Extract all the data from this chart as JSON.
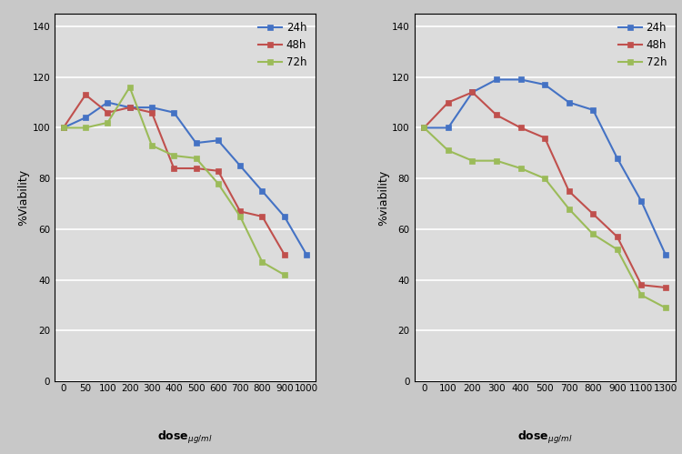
{
  "left": {
    "doses": [
      0,
      50,
      100,
      200,
      300,
      400,
      500,
      600,
      700,
      800,
      900,
      1000
    ],
    "24h": [
      100,
      104,
      110,
      108,
      108,
      106,
      94,
      95,
      85,
      75,
      65,
      50
    ],
    "48h": [
      100,
      113,
      106,
      108,
      106,
      84,
      84,
      83,
      67,
      65,
      50,
      null
    ],
    "72h": [
      100,
      100,
      102,
      116,
      93,
      89,
      88,
      78,
      65,
      47,
      42,
      null
    ],
    "ylabel": "%Viability"
  },
  "right": {
    "doses": [
      0,
      100,
      200,
      300,
      400,
      500,
      700,
      800,
      900,
      1100,
      1300
    ],
    "24h": [
      100,
      100,
      114,
      119,
      119,
      117,
      110,
      107,
      88,
      71,
      50
    ],
    "48h": [
      100,
      110,
      114,
      105,
      100,
      96,
      75,
      66,
      57,
      38,
      37
    ],
    "72h": [
      100,
      91,
      87,
      87,
      84,
      80,
      68,
      58,
      52,
      34,
      29
    ],
    "ylabel": "%viability"
  },
  "colors": {
    "24h": "#4472C4",
    "48h": "#C0504D",
    "72h": "#9BBB59"
  },
  "linewidth": 1.5,
  "markersize": 5,
  "bg_color": "#DCDCDC",
  "fig_bg_color": "#C8C8C8",
  "grid_color": "#FFFFFF",
  "yticks": [
    0,
    20,
    40,
    60,
    80,
    100,
    120,
    140
  ],
  "ylim": [
    0,
    145
  ],
  "label_fontsize": 9,
  "tick_fontsize": 7.5,
  "legend_fontsize": 8.5
}
